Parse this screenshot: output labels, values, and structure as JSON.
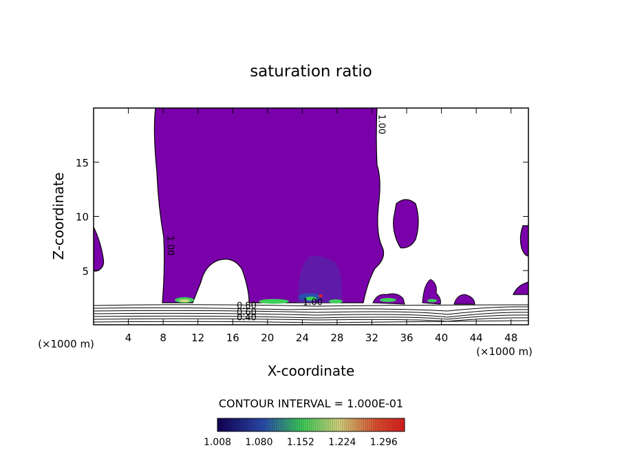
{
  "chart_data": {
    "type": "heatmap",
    "title": "saturation ratio",
    "xlabel": "X-coordinate",
    "ylabel": "Z-coordinate",
    "x_unit": "(×1000 m)",
    "z_unit": "(×1000 m)",
    "xlim": [
      0,
      50
    ],
    "ylim": [
      0,
      20
    ],
    "x_ticks": [
      4,
      8,
      12,
      16,
      20,
      24,
      28,
      32,
      36,
      40,
      44,
      48
    ],
    "y_ticks": [
      5,
      10,
      15
    ],
    "contour_interval_label": "CONTOUR INTERVAL = 1.000E-01",
    "colorbar_ticks": [
      "1.008",
      "1.080",
      "1.152",
      "1.224",
      "1.296"
    ],
    "colorbar_range": [
      1.008,
      1.332
    ],
    "contour_labels": [
      {
        "text": "1.00",
        "x": 8.5,
        "z": 7.3,
        "rotate": 90
      },
      {
        "text": "1.00",
        "x": 32.8,
        "z": 18.5,
        "rotate": 90
      },
      {
        "text": "1.00",
        "x": 25.2,
        "z": 1.8,
        "rotate": 0
      },
      {
        "text": "0.80",
        "x": 17.6,
        "z": 1.5,
        "rotate": 0
      },
      {
        "text": "0.60",
        "x": 17.6,
        "z": 0.9,
        "rotate": 0
      },
      {
        "text": "0.40",
        "x": 17.6,
        "z": 0.4,
        "rotate": 0
      }
    ],
    "colors": {
      "supersaturated_fill": "#7a00aa",
      "colorbar_low": "#14005a",
      "colorbar_mid": "#3ccf5a",
      "colorbar_high": "#e02020"
    }
  }
}
